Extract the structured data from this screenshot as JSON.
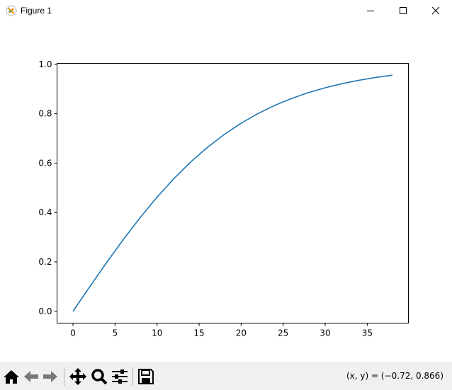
{
  "window": {
    "title": "Figure 1",
    "icons": [
      "matplotlib-icon",
      "minimize-icon",
      "maximize-icon",
      "close-icon"
    ]
  },
  "toolbar": {
    "buttons": [
      "home-icon",
      "back-icon",
      "forward-icon",
      "pan-icon",
      "zoom-icon",
      "configure-subplots-icon",
      "save-icon"
    ],
    "coords": "(x, y) = (−0.72, 0.866)"
  },
  "chart_data": {
    "type": "line",
    "title": "",
    "xlabel": "",
    "ylabel": "",
    "xlim": [
      -1.9,
      39.9
    ],
    "ylim": [
      -0.048,
      1.004
    ],
    "grid": false,
    "xticks": [
      0,
      5,
      10,
      15,
      20,
      25,
      30,
      35
    ],
    "xtick_labels": [
      "0",
      "5",
      "10",
      "15",
      "20",
      "25",
      "30",
      "35"
    ],
    "yticks": [
      0,
      0.2,
      0.4,
      0.6,
      0.8,
      1.0
    ],
    "ytick_labels": [
      "0.0",
      "0.2",
      "0.4",
      "0.6",
      "0.8",
      "1.0"
    ],
    "series": [
      {
        "color": "#1f77b4",
        "x": [
          0,
          2,
          4,
          6,
          8,
          10,
          12,
          14,
          16,
          18,
          20,
          22,
          24,
          26,
          28,
          30,
          32,
          34,
          36,
          38
        ],
        "y": [
          0,
          0.0997,
          0.1974,
          0.2913,
          0.3799,
          0.4621,
          0.537,
          0.6044,
          0.664,
          0.7163,
          0.7616,
          0.8005,
          0.8337,
          0.8617,
          0.8854,
          0.9051,
          0.9217,
          0.9354,
          0.9468,
          0.9562
        ]
      }
    ]
  }
}
